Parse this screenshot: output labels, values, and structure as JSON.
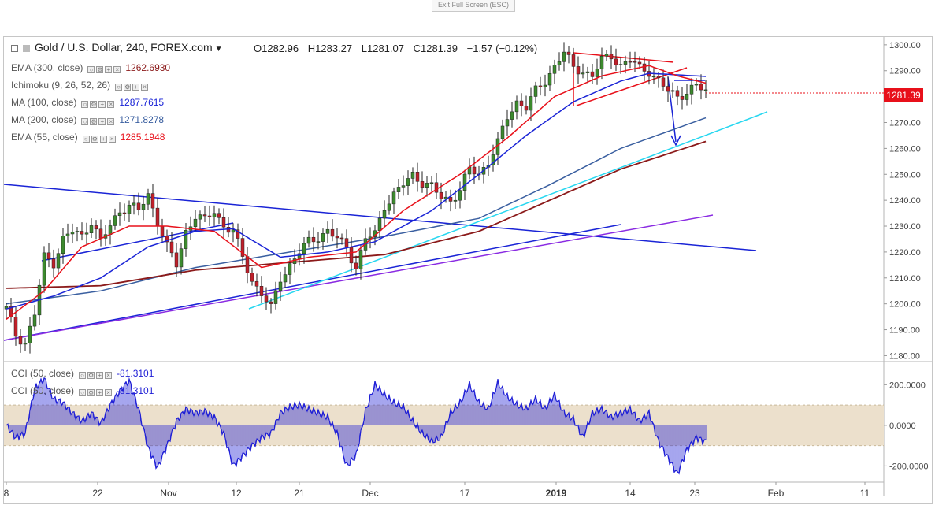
{
  "exit_full_screen": "Exit Full Screen (ESC)",
  "header": {
    "symbol": "Gold / U.S. Dollar, 240, FOREX.com",
    "open": "O1282.96",
    "high": "H1283.27",
    "low": "L1281.07",
    "close": "C1281.39",
    "change": "−1.57 (−0.12%)"
  },
  "indicators": [
    {
      "label": "EMA (300, close)",
      "value": "1262.6930",
      "color": "#8b1a1a"
    },
    {
      "label": "Ichimoku (9, 26, 52, 26)",
      "value": "",
      "color": "#999999"
    },
    {
      "label": "MA (100, close)",
      "value": "1287.7615",
      "color": "#1a24d6"
    },
    {
      "label": "MA (200, close)",
      "value": "1271.8278",
      "color": "#3a5fa0"
    },
    {
      "label": "EMA (55, close)",
      "value": "1285.1948",
      "color": "#e8101a"
    }
  ],
  "cci_legend": [
    {
      "label": "CCI (50, close)",
      "value": "-81.3101"
    },
    {
      "label": "CCI (50, close)",
      "value": "-81.3101"
    }
  ],
  "last_price": "1281.39",
  "colors": {
    "up": "#3c8a2e",
    "down": "#c0202a",
    "cci": "#1f1fd6",
    "band": "#ece0cc"
  },
  "chart_data": {
    "type": "candlestick",
    "price_axis": {
      "ticks": [
        "1300.00",
        "1290.00",
        "1280.00",
        "1270.00",
        "1260.00",
        "1250.00",
        "1240.00",
        "1230.00",
        "1220.00",
        "1210.00",
        "1200.00",
        "1190.00",
        "1180.00"
      ],
      "range": [
        1178,
        1303
      ]
    },
    "cci_axis": {
      "ticks": [
        "200.0000",
        "0.0000",
        "-200.0000"
      ],
      "range": [
        -280,
        310
      ],
      "band": [
        -100,
        100
      ]
    },
    "x_labels": [
      "8",
      "22",
      "Nov",
      "12",
      "21",
      "Dec",
      "17",
      "2019",
      "14",
      "23",
      "Feb",
      "11"
    ],
    "price_path": [
      [
        0,
        1198
      ],
      [
        2,
        1188
      ],
      [
        4,
        1185
      ],
      [
        6,
        1196
      ],
      [
        8,
        1218
      ],
      [
        10,
        1216
      ],
      [
        12,
        1225
      ],
      [
        14,
        1228
      ],
      [
        16,
        1226
      ],
      [
        18,
        1232
      ],
      [
        20,
        1224
      ],
      [
        22,
        1230
      ],
      [
        24,
        1236
      ],
      [
        26,
        1238
      ],
      [
        28,
        1236
      ],
      [
        30,
        1242
      ],
      [
        32,
        1232
      ],
      [
        34,
        1222
      ],
      [
        36,
        1215
      ],
      [
        38,
        1228
      ],
      [
        40,
        1234
      ],
      [
        42,
        1232
      ],
      [
        44,
        1236
      ],
      [
        46,
        1230
      ],
      [
        48,
        1228
      ],
      [
        50,
        1218
      ],
      [
        52,
        1209
      ],
      [
        54,
        1204
      ],
      [
        56,
        1198
      ],
      [
        58,
        1210
      ],
      [
        60,
        1215
      ],
      [
        62,
        1220
      ],
      [
        64,
        1224
      ],
      [
        66,
        1226
      ],
      [
        68,
        1228
      ],
      [
        70,
        1225
      ],
      [
        72,
        1222
      ],
      [
        74,
        1214
      ],
      [
        76,
        1225
      ],
      [
        78,
        1227
      ],
      [
        80,
        1238
      ],
      [
        82,
        1242
      ],
      [
        84,
        1246
      ],
      [
        86,
        1250
      ],
      [
        88,
        1247
      ],
      [
        90,
        1245
      ],
      [
        92,
        1241
      ],
      [
        94,
        1240
      ],
      [
        96,
        1244
      ],
      [
        98,
        1252
      ],
      [
        100,
        1250
      ],
      [
        102,
        1255
      ],
      [
        104,
        1262
      ],
      [
        106,
        1272
      ],
      [
        108,
        1278
      ],
      [
        110,
        1276
      ],
      [
        112,
        1282
      ],
      [
        114,
        1286
      ],
      [
        116,
        1292
      ],
      [
        118,
        1297
      ],
      [
        120,
        1291
      ],
      [
        122,
        1290
      ],
      [
        124,
        1288
      ],
      [
        126,
        1294
      ],
      [
        128,
        1296
      ],
      [
        130,
        1292
      ],
      [
        132,
        1294
      ],
      [
        134,
        1291
      ],
      [
        136,
        1290
      ],
      [
        138,
        1286
      ],
      [
        140,
        1282
      ],
      [
        142,
        1280
      ],
      [
        144,
        1282
      ],
      [
        146,
        1284
      ],
      [
        148,
        1282
      ]
    ],
    "ema300": [
      [
        0,
        1206
      ],
      [
        20,
        1207
      ],
      [
        40,
        1213
      ],
      [
        60,
        1216
      ],
      [
        80,
        1219
      ],
      [
        100,
        1228
      ],
      [
        115,
        1240
      ],
      [
        130,
        1252
      ],
      [
        148,
        1262.7
      ]
    ],
    "ma100": [
      [
        0,
        1198
      ],
      [
        10,
        1203
      ],
      [
        20,
        1210
      ],
      [
        30,
        1222
      ],
      [
        40,
        1228
      ],
      [
        48,
        1229
      ],
      [
        58,
        1218
      ],
      [
        68,
        1220
      ],
      [
        78,
        1224
      ],
      [
        90,
        1236
      ],
      [
        100,
        1250
      ],
      [
        110,
        1265
      ],
      [
        120,
        1278
      ],
      [
        130,
        1286
      ],
      [
        136,
        1289
      ],
      [
        148,
        1287.8
      ]
    ],
    "ma200": [
      [
        0,
        1200
      ],
      [
        20,
        1205
      ],
      [
        40,
        1214
      ],
      [
        60,
        1220
      ],
      [
        80,
        1226
      ],
      [
        100,
        1233
      ],
      [
        115,
        1246
      ],
      [
        130,
        1260
      ],
      [
        148,
        1271.8
      ]
    ],
    "ema55": [
      [
        0,
        1194
      ],
      [
        8,
        1205
      ],
      [
        16,
        1222
      ],
      [
        26,
        1230
      ],
      [
        34,
        1230
      ],
      [
        44,
        1228
      ],
      [
        54,
        1214
      ],
      [
        64,
        1218
      ],
      [
        74,
        1220
      ],
      [
        84,
        1236
      ],
      [
        96,
        1250
      ],
      [
        106,
        1264
      ],
      [
        116,
        1280
      ],
      [
        126,
        1288
      ],
      [
        136,
        1292
      ],
      [
        142,
        1288
      ],
      [
        148,
        1285.2
      ]
    ],
    "cci_path": [
      [
        0,
        0
      ],
      [
        2,
        -60
      ],
      [
        4,
        -40
      ],
      [
        6,
        180
      ],
      [
        8,
        230
      ],
      [
        10,
        130
      ],
      [
        12,
        110
      ],
      [
        14,
        60
      ],
      [
        16,
        20
      ],
      [
        18,
        60
      ],
      [
        20,
        10
      ],
      [
        22,
        100
      ],
      [
        24,
        170
      ],
      [
        26,
        220
      ],
      [
        28,
        80
      ],
      [
        30,
        -110
      ],
      [
        32,
        -210
      ],
      [
        34,
        -100
      ],
      [
        36,
        20
      ],
      [
        38,
        80
      ],
      [
        40,
        60
      ],
      [
        42,
        70
      ],
      [
        44,
        40
      ],
      [
        46,
        -40
      ],
      [
        48,
        -200
      ],
      [
        50,
        -150
      ],
      [
        52,
        -100
      ],
      [
        54,
        -60
      ],
      [
        56,
        -40
      ],
      [
        58,
        60
      ],
      [
        60,
        90
      ],
      [
        62,
        100
      ],
      [
        64,
        80
      ],
      [
        66,
        60
      ],
      [
        68,
        40
      ],
      [
        70,
        -40
      ],
      [
        72,
        -200
      ],
      [
        74,
        -150
      ],
      [
        76,
        70
      ],
      [
        78,
        200
      ],
      [
        80,
        150
      ],
      [
        82,
        110
      ],
      [
        84,
        90
      ],
      [
        86,
        20
      ],
      [
        88,
        -40
      ],
      [
        90,
        -80
      ],
      [
        92,
        -60
      ],
      [
        94,
        60
      ],
      [
        96,
        110
      ],
      [
        98,
        200
      ],
      [
        100,
        110
      ],
      [
        102,
        80
      ],
      [
        104,
        210
      ],
      [
        106,
        140
      ],
      [
        108,
        100
      ],
      [
        110,
        80
      ],
      [
        112,
        130
      ],
      [
        114,
        80
      ],
      [
        116,
        150
      ],
      [
        118,
        60
      ],
      [
        120,
        30
      ],
      [
        122,
        -60
      ],
      [
        124,
        60
      ],
      [
        126,
        80
      ],
      [
        128,
        40
      ],
      [
        130,
        60
      ],
      [
        132,
        80
      ],
      [
        134,
        20
      ],
      [
        136,
        60
      ],
      [
        138,
        -80
      ],
      [
        140,
        -160
      ],
      [
        142,
        -240
      ],
      [
        144,
        -120
      ],
      [
        146,
        -60
      ],
      [
        148,
        -81.3
      ]
    ]
  }
}
